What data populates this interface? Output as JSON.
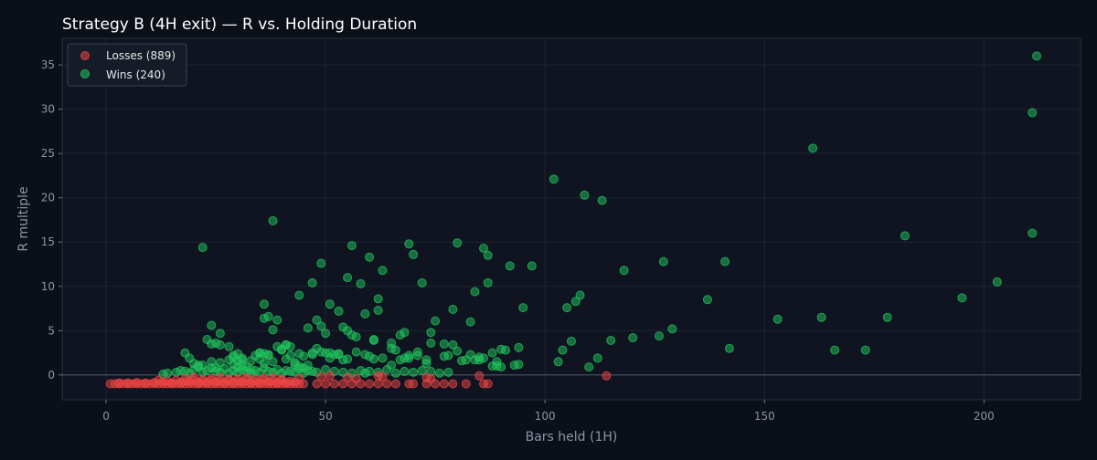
{
  "chart_data": {
    "type": "scatter",
    "title": "Strategy B (4H exit) — R vs. Holding Duration",
    "xlabel": "Bars held (1H)",
    "ylabel": "R multiple",
    "xlim": [
      -10,
      222
    ],
    "ylim": [
      -2.8,
      38
    ],
    "xticks": [
      0,
      50,
      100,
      150,
      200
    ],
    "yticks": [
      0,
      5,
      10,
      15,
      20,
      25,
      30,
      35
    ],
    "grid": true,
    "zero_line": true,
    "legend_position": "top-left",
    "colors": {
      "background": "#0b0f18",
      "plot_bg": "#0f1420",
      "grid": "#1f2633",
      "loss": "#ef4444",
      "win": "#22c55e",
      "zero": "#4b5563"
    },
    "series": [
      {
        "name": "Losses (889)",
        "key": "losses",
        "x": [
          1,
          2,
          3,
          4,
          5,
          6,
          7,
          8,
          9,
          10,
          11,
          12,
          13,
          14,
          15,
          16,
          17,
          18,
          19,
          20,
          21,
          22,
          23,
          24,
          25,
          26,
          27,
          28,
          29,
          30,
          31,
          32,
          33,
          34,
          35,
          36,
          37,
          38,
          39,
          40,
          41,
          42,
          43,
          44,
          45,
          3,
          5,
          7,
          9,
          11,
          13,
          15,
          17,
          19,
          21,
          23,
          25,
          27,
          29,
          31,
          33,
          35,
          37,
          39,
          41,
          43,
          12,
          14,
          16,
          18,
          20,
          22,
          24,
          26,
          28,
          30,
          32,
          34,
          36,
          38,
          40,
          42,
          18,
          20,
          22,
          24,
          26,
          28,
          30,
          32,
          34,
          36,
          38,
          40,
          44,
          48,
          50,
          52,
          54,
          56,
          58,
          60,
          62,
          64,
          66,
          69,
          70,
          73,
          75,
          77,
          79,
          82,
          86,
          87,
          49,
          51,
          55,
          57,
          62,
          63,
          73,
          74,
          85,
          114
        ],
        "y": [
          -1,
          -1,
          -1,
          -1,
          -1,
          -1,
          -1,
          -1,
          -1,
          -1,
          -1,
          -1,
          -1,
          -1,
          -1,
          -1,
          -1,
          -1,
          -1,
          -1,
          -1,
          -1,
          -1,
          -1,
          -1,
          -1,
          -1,
          -1,
          -1,
          -1,
          -1,
          -1,
          -1,
          -1,
          -1,
          -1,
          -1,
          -1,
          -1,
          -1,
          -1,
          -1,
          -1,
          -1,
          -1,
          -0.9,
          -0.9,
          -0.85,
          -0.9,
          -0.85,
          -0.8,
          -0.9,
          -0.85,
          -0.8,
          -0.9,
          -0.85,
          -0.8,
          -0.9,
          -0.85,
          -0.8,
          -0.9,
          -0.85,
          -0.8,
          -0.9,
          -0.85,
          -0.8,
          -0.6,
          -0.7,
          -0.6,
          -0.7,
          -0.6,
          -0.7,
          -0.6,
          -0.7,
          -0.6,
          -0.7,
          -0.6,
          -0.7,
          -0.6,
          -0.7,
          -0.6,
          -0.7,
          -0.4,
          -0.3,
          -0.5,
          -0.4,
          -0.3,
          -0.5,
          -0.4,
          -0.3,
          -0.5,
          -0.4,
          -0.3,
          -0.5,
          -0.4,
          -1,
          -1,
          -1,
          -1,
          -1,
          -1,
          -1,
          -1,
          -1,
          -1,
          -1,
          -1,
          -1,
          -1,
          -1,
          -1,
          -1,
          -1,
          -1,
          -0.2,
          -0.1,
          -0.3,
          -0.4,
          -0.1,
          -0.2,
          -0.3,
          -0.4,
          -0.1,
          -0.1
        ]
      },
      {
        "name": "Wins (240)",
        "key": "wins",
        "x": [
          212,
          211,
          211,
          161,
          102,
          109,
          113,
          182,
          141,
          127,
          118,
          203,
          195,
          137,
          129,
          153,
          163,
          178,
          166,
          173,
          142,
          120,
          126,
          115,
          112,
          108,
          105,
          107,
          110,
          104,
          103,
          106,
          22,
          38,
          56,
          60,
          69,
          70,
          80,
          86,
          87,
          92,
          97,
          49,
          55,
          58,
          63,
          72,
          84,
          87,
          95,
          47,
          36,
          37,
          39,
          44,
          51,
          53,
          59,
          62,
          67,
          75,
          79,
          83,
          54,
          49,
          55,
          61,
          62,
          65,
          68,
          71,
          74,
          77,
          80,
          85,
          89,
          91,
          94,
          46,
          48,
          50,
          52,
          56,
          57,
          61,
          66,
          69,
          73,
          78,
          82,
          84,
          88,
          90,
          24,
          26,
          28,
          29,
          30,
          31,
          32,
          33,
          35,
          36,
          37,
          38,
          39,
          40,
          41,
          42,
          43,
          44,
          45,
          46,
          13,
          14,
          16,
          17,
          18,
          19,
          20,
          21,
          22,
          23,
          24,
          25,
          26,
          27,
          28,
          29,
          30,
          31,
          32,
          33,
          34,
          35,
          36,
          37,
          38,
          39,
          40,
          41,
          42,
          43,
          44,
          45,
          46,
          47,
          48,
          50,
          52,
          54,
          56,
          58,
          60,
          62,
          64,
          66,
          68,
          70,
          72,
          74,
          76,
          78,
          18,
          19,
          20,
          21,
          22,
          24,
          25,
          26,
          28,
          29,
          30,
          31,
          33,
          34,
          35,
          36,
          37,
          38,
          40,
          41,
          43,
          45,
          47,
          49,
          51,
          53,
          55,
          57,
          59,
          61,
          63,
          65,
          67,
          69,
          71,
          73,
          77,
          81,
          85,
          89,
          93,
          23,
          24,
          25,
          26,
          29,
          30,
          31,
          35,
          36,
          41,
          42,
          44,
          47,
          48,
          50,
          51,
          53,
          54,
          59,
          60,
          65,
          68,
          74,
          79,
          83,
          86,
          88,
          90,
          94
        ],
        "y": [
          36,
          29.6,
          16,
          25.6,
          22.1,
          20.3,
          19.7,
          15.7,
          12.8,
          12.8,
          11.8,
          10.5,
          8.7,
          8.5,
          5.2,
          6.3,
          6.5,
          6.5,
          2.8,
          2.8,
          3,
          4.2,
          4.4,
          3.9,
          1.9,
          9,
          7.6,
          8.3,
          0.9,
          2.8,
          1.5,
          3.8,
          14.4,
          17.4,
          14.6,
          13.3,
          14.8,
          13.6,
          14.9,
          14.3,
          13.5,
          12.3,
          12.3,
          12.6,
          11,
          10.3,
          11.8,
          10.4,
          9.4,
          10.4,
          7.6,
          10.4,
          8,
          6.6,
          6.2,
          9,
          8,
          7.2,
          6.9,
          8.6,
          4.5,
          6.1,
          7.4,
          6,
          5.4,
          5.5,
          5,
          3.9,
          7.3,
          3.6,
          4.8,
          2.6,
          4.8,
          3.5,
          2.7,
          2,
          1.5,
          2.8,
          1.2,
          5.3,
          6.2,
          4.7,
          2.3,
          4.5,
          4.3,
          4,
          2.8,
          2.2,
          1.7,
          2.2,
          1.7,
          1.7,
          1,
          0.9,
          5.6,
          4.7,
          3.2,
          2.2,
          1.6,
          1.1,
          0.9,
          0.6,
          2.5,
          6.4,
          2.2,
          5.1,
          3.2,
          2.8,
          3.4,
          3.2,
          1.4,
          1,
          0.8,
          1.1,
          0.1,
          0.2,
          0.3,
          0.5,
          0.4,
          0.2,
          0.6,
          1.1,
          0.3,
          0.5,
          0.8,
          0.4,
          0.3,
          0.7,
          0.2,
          0.5,
          0.3,
          0.6,
          0.4,
          0.2,
          0.5,
          0.3,
          0.8,
          0.4,
          0.3,
          0.6,
          0.2,
          0.5,
          0.4,
          0.3,
          0.7,
          0.2,
          0.5,
          0.4,
          0.3,
          0.6,
          0.4,
          0.3,
          0.2,
          0.5,
          0.4,
          0.3,
          0.6,
          0.2,
          0.4,
          0.3,
          0.5,
          0.4,
          0.2,
          0.3,
          2.5,
          1.9,
          1.3,
          0.9,
          1.1,
          1.5,
          0.8,
          1.4,
          1.7,
          1.2,
          0.9,
          1.9,
          1.6,
          2.2,
          2.5,
          1.3,
          2.3,
          1.5,
          2.9,
          1.8,
          1.2,
          2.1,
          2.3,
          2.6,
          1.9,
          2.3,
          1.8,
          2.6,
          2.3,
          1.8,
          1.9,
          1.1,
          1.7,
          1.9,
          2.2,
          1.3,
          2.1,
          1.6,
          1.7,
          1,
          1.1,
          4,
          3.5,
          3.6,
          3.4,
          2,
          2.4,
          1.7,
          1.8,
          2.4,
          3.4,
          2.2,
          2.4,
          2.5,
          3,
          2.5,
          2.5,
          2.4,
          1.7,
          0.2,
          2.1,
          3,
          1.9,
          3.6,
          3.4,
          2.3,
          1.9,
          2.5,
          2.9,
          3.1
        ]
      }
    ]
  }
}
